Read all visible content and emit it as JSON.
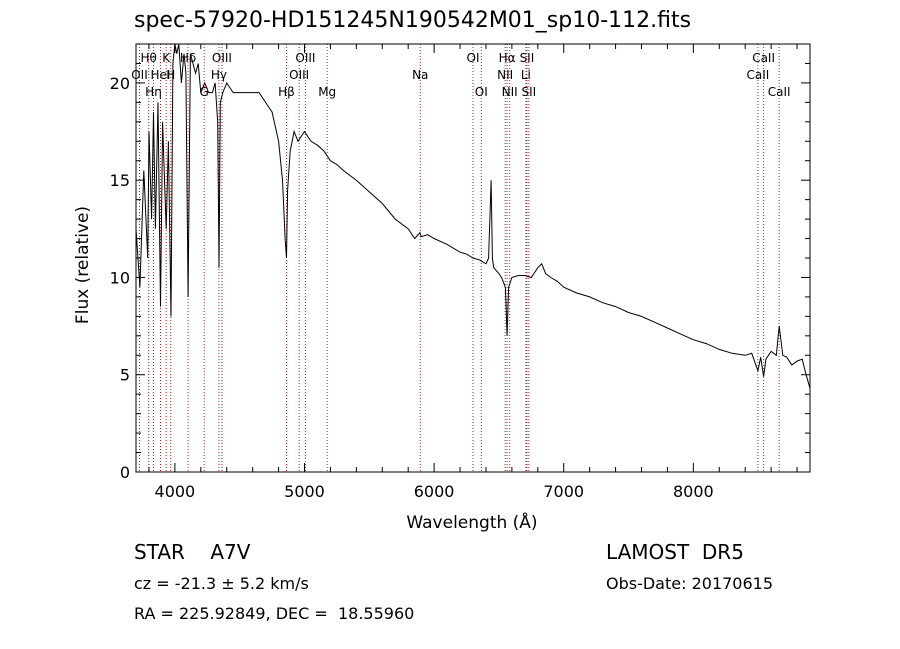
{
  "chart_data": {
    "type": "line",
    "title": "spec-57920-HD151245N190542M01_sp10-112.fits",
    "xlabel": "Wavelength (Å)",
    "ylabel": "Flux (relative)",
    "xlim": [
      3700,
      8900
    ],
    "ylim": [
      0,
      22
    ],
    "xticks": [
      4000,
      5000,
      6000,
      7000,
      8000
    ],
    "yticks": [
      0,
      5,
      10,
      15,
      20
    ],
    "line_color": "#000000",
    "marker_color": "#b22222",
    "spectrum": {
      "x": [
        3700,
        3730,
        3760,
        3790,
        3800,
        3820,
        3835,
        3850,
        3870,
        3889,
        3905,
        3920,
        3933,
        3950,
        3970,
        3985,
        4000,
        4015,
        4030,
        4050,
        4070,
        4085,
        4102,
        4120,
        4140,
        4160,
        4180,
        4200,
        4230,
        4260,
        4290,
        4310,
        4330,
        4340,
        4350,
        4370,
        4400,
        4450,
        4500,
        4550,
        4600,
        4650,
        4700,
        4750,
        4800,
        4830,
        4850,
        4861,
        4870,
        4890,
        4920,
        4950,
        5000,
        5050,
        5100,
        5150,
        5200,
        5250,
        5300,
        5400,
        5500,
        5600,
        5700,
        5800,
        5850,
        5890,
        5900,
        5950,
        6000,
        6100,
        6200,
        6250,
        6300,
        6350,
        6400,
        6420,
        6440,
        6450,
        6460,
        6500,
        6520,
        6550,
        6563,
        6575,
        6600,
        6650,
        6700,
        6750,
        6800,
        6830,
        6860,
        6900,
        6950,
        7000,
        7100,
        7200,
        7300,
        7400,
        7500,
        7600,
        7700,
        7800,
        7900,
        8000,
        8100,
        8200,
        8300,
        8400,
        8450,
        8498,
        8520,
        8542,
        8560,
        8600,
        8640,
        8662,
        8690,
        8720,
        8760,
        8800,
        8840,
        8870,
        8900
      ],
      "y": [
        12.5,
        9.5,
        15.5,
        11.0,
        17.5,
        13.0,
        18.5,
        12.5,
        19.0,
        8.5,
        18.0,
        15.0,
        12.5,
        17.0,
        8.0,
        21.0,
        22.0,
        21.5,
        22.0,
        20.0,
        21.5,
        20.5,
        9.0,
        21.5,
        21.0,
        20.5,
        21.0,
        19.5,
        20.0,
        19.5,
        19.5,
        20.0,
        18.0,
        10.5,
        19.0,
        19.5,
        20.0,
        19.5,
        19.5,
        19.5,
        19.5,
        19.5,
        19.0,
        18.5,
        17.0,
        15.0,
        12.0,
        11.0,
        14.5,
        16.5,
        17.5,
        17.0,
        17.5,
        17.0,
        16.8,
        16.5,
        16.0,
        15.8,
        15.5,
        15.0,
        14.4,
        13.8,
        13.0,
        12.5,
        12.0,
        12.3,
        12.1,
        12.2,
        12.0,
        11.7,
        11.3,
        11.2,
        11.0,
        10.9,
        10.7,
        11.0,
        15.0,
        11.0,
        10.5,
        10.2,
        10.0,
        9.5,
        7.0,
        9.5,
        10.0,
        10.1,
        10.1,
        10.0,
        10.5,
        10.7,
        10.2,
        10.0,
        9.8,
        9.5,
        9.2,
        9.0,
        8.7,
        8.5,
        8.2,
        8.0,
        7.7,
        7.4,
        7.1,
        6.8,
        6.6,
        6.3,
        6.1,
        6.0,
        6.1,
        5.2,
        5.9,
        4.9,
        5.8,
        6.2,
        6.0,
        7.5,
        6.0,
        5.9,
        5.5,
        5.7,
        5.8,
        5.0,
        4.3
      ]
    },
    "line_markers": [
      {
        "x": 3727,
        "label": "OII",
        "row": 2
      },
      {
        "x": 3798,
        "label": "Hθ",
        "row": 1
      },
      {
        "x": 3835,
        "label": "Hη",
        "row": 3
      },
      {
        "x": 3889,
        "label": "HeI",
        "row": 2
      },
      {
        "x": 3933,
        "label": "K",
        "row": 1
      },
      {
        "x": 3968,
        "label": "H",
        "row": 2
      },
      {
        "x": 4102,
        "label": "Hδ",
        "row": 1
      },
      {
        "x": 4226,
        "label": "G",
        "row": 4
      },
      {
        "x": 4340,
        "label": "Hγ",
        "row": 2
      },
      {
        "x": 4363,
        "label": "OIII",
        "row": 1
      },
      {
        "x": 4861,
        "label": "Hβ",
        "row": 4
      },
      {
        "x": 4959,
        "label": "OIII",
        "row": 2
      },
      {
        "x": 5007,
        "label": "OIII",
        "row": 1
      },
      {
        "x": 5175,
        "label": "Mg",
        "row": 4
      },
      {
        "x": 5893,
        "label": "Na",
        "row": 2
      },
      {
        "x": 6300,
        "label": "OI",
        "row": 1
      },
      {
        "x": 6364,
        "label": "OI",
        "row": 4
      },
      {
        "x": 6548,
        "label": "NII",
        "row": 2
      },
      {
        "x": 6563,
        "label": "Hα",
        "row": 1
      },
      {
        "x": 6583,
        "label": "NII",
        "row": 4
      },
      {
        "x": 6708,
        "label": "Li",
        "row": 2
      },
      {
        "x": 6716,
        "label": "SII",
        "row": 1
      },
      {
        "x": 6731,
        "label": "SII",
        "row": 4
      },
      {
        "x": 8498,
        "label": "CaII",
        "row": 2
      },
      {
        "x": 8542,
        "label": "CaII",
        "row": 1
      },
      {
        "x": 8662,
        "label": "CaII",
        "row": 3
      }
    ]
  },
  "info": {
    "star_line": "STAR    A7V",
    "survey": "LAMOST  DR5",
    "cz": "cz = -21.3 ± 5.2 km/s",
    "obs_date": "Obs-Date: 20170615",
    "radec": "RA = 225.92849, DEC =  18.55960"
  }
}
